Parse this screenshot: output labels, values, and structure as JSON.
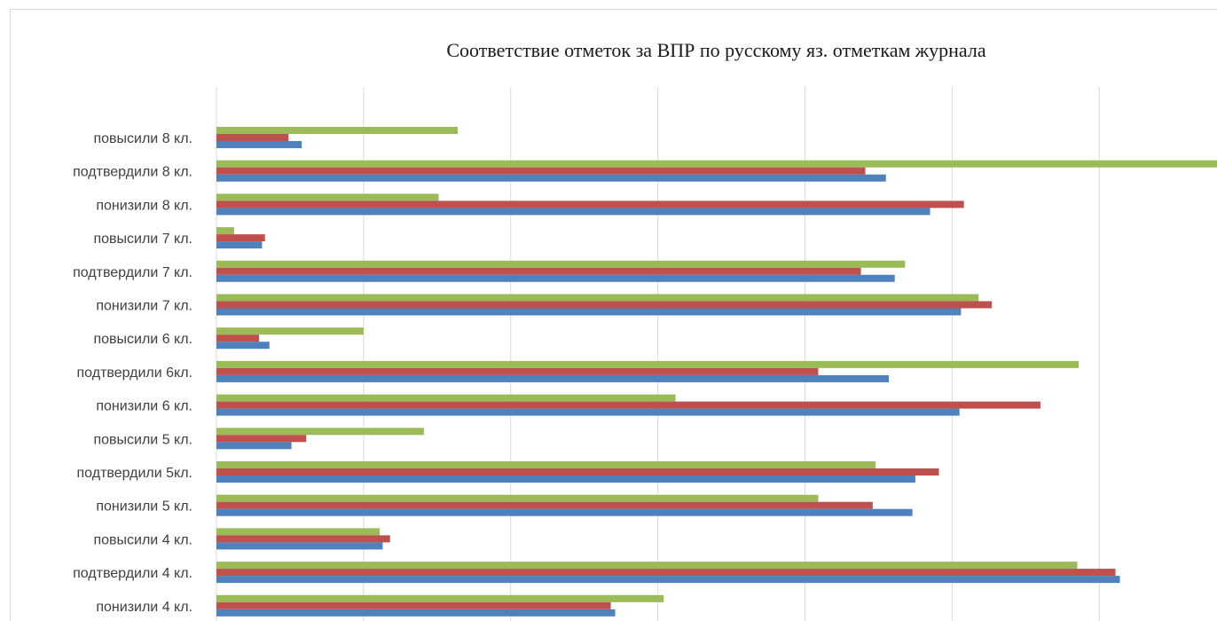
{
  "chart_data": {
    "type": "bar",
    "orientation": "horizontal",
    "title": "Соответствие отметок за ВПР по русскому яз. отметкам журнала",
    "categories": [
      "повысили 8 кл.",
      "подтвердили 8 кл.",
      "понизили 8 кл.",
      "повысили 7 кл.",
      "подтвердили 7 кл.",
      "понизили 7 кл.",
      "повысили 6 кл.",
      "подтвердили 6кл.",
      "понизили 6 кл.",
      "повысили 5 кл.",
      "подтвердили 5кл.",
      "понизили 5 кл.",
      "повысили 4 кл.",
      "подтвердили 4 кл.",
      "понизили 4 кл."
    ],
    "series": [
      {
        "color": "#4f81bd",
        "values": [
          5.8,
          45.5,
          48.5,
          3.1,
          46.1,
          50.6,
          3.6,
          45.7,
          50.5,
          5.1,
          47.5,
          47.3,
          11.3,
          61.4,
          27.1
        ]
      },
      {
        "color": "#c0504d",
        "values": [
          4.9,
          44.1,
          50.8,
          3.3,
          43.8,
          52.7,
          2.9,
          40.9,
          56.0,
          6.1,
          49.1,
          44.6,
          11.8,
          61.1,
          26.8
        ]
      },
      {
        "color": "#9bbb59",
        "values": [
          16.4,
          68.0,
          15.1,
          1.2,
          46.8,
          51.8,
          10.0,
          58.6,
          31.2,
          14.1,
          44.8,
          40.9,
          11.1,
          58.5,
          30.4
        ]
      }
    ],
    "xlim": [
      0,
      70
    ],
    "x_gridline_step": 10,
    "grid": true,
    "legend": "none"
  }
}
